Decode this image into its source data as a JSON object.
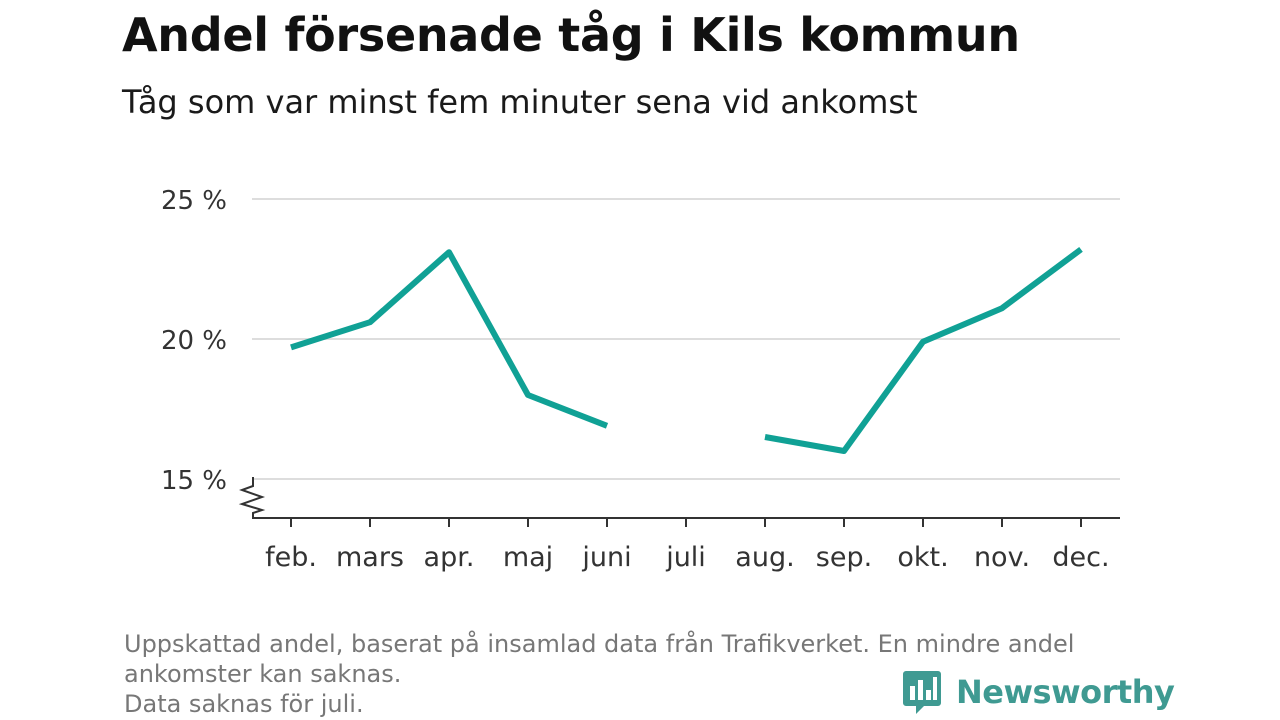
{
  "header": {
    "title": "Andel försenade tåg i Kils kommun",
    "subtitle": "Tåg som var minst fem minuter sena vid ankomst"
  },
  "chart_data": {
    "type": "line",
    "title": "Andel försenade tåg i Kils kommun",
    "subtitle": "Tåg som var minst fem minuter sena vid ankomst",
    "xlabel": "",
    "ylabel": "",
    "categories": [
      "feb.",
      "mars",
      "apr.",
      "maj",
      "juni",
      "juli",
      "aug.",
      "sep.",
      "okt.",
      "nov.",
      "dec."
    ],
    "series": [
      {
        "values": [
          19.7,
          20.6,
          23.1,
          18.0,
          16.9,
          null,
          16.5,
          16.0,
          19.9,
          21.1,
          23.2
        ],
        "color": "#10a195"
      }
    ],
    "yticks": [
      15,
      20,
      25
    ],
    "ytick_labels": [
      "15 %",
      "20 %",
      "25 %"
    ],
    "ylim": [
      15,
      25
    ],
    "y_axis_break": true,
    "grid": true,
    "legend": "none"
  },
  "footer": {
    "note_lines": [
      "Uppskattad andel, baserat på insamlad data från Trafikverket. En mindre andel",
      "ankomster kan saknas.",
      "Data saknas för juli."
    ],
    "brand": "Newsworthy",
    "brand_color": "#3f9a92"
  },
  "colors": {
    "grid": "#dddddd",
    "axis": "#333333",
    "tick_text": "#333333"
  }
}
